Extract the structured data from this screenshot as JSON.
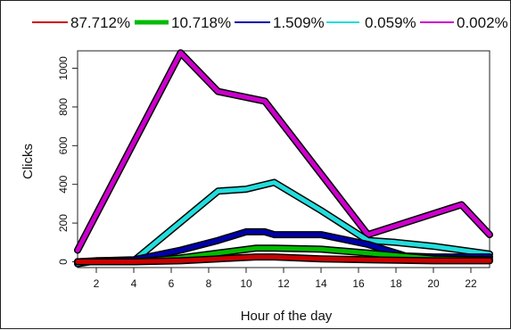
{
  "chart_data": {
    "type": "line",
    "xlabel": "Hour of the day",
    "ylabel": "Clicks",
    "x_ticks": [
      2,
      4,
      6,
      8,
      10,
      12,
      14,
      16,
      18,
      20,
      22
    ],
    "y_ticks": [
      0,
      200,
      400,
      600,
      800,
      1000
    ],
    "xlim": [
      1,
      23
    ],
    "ylim": [
      -30,
      1090
    ],
    "grid": false,
    "legend_position": "top",
    "series": [
      {
        "name": "87.712%",
        "color": "#cc0000",
        "x": [
          1,
          2,
          4,
          6.5,
          8.5,
          10.5,
          11.5,
          14,
          16.5,
          20,
          23
        ],
        "y": [
          0,
          0,
          0,
          5,
          15,
          25,
          25,
          15,
          10,
          5,
          5
        ]
      },
      {
        "name": "10.718%",
        "color": "#00bb00",
        "x": [
          1,
          2,
          4,
          6.5,
          8.5,
          10.5,
          11.5,
          14,
          16.5,
          20,
          23
        ],
        "y": [
          0,
          0,
          0,
          20,
          45,
          70,
          70,
          65,
          45,
          15,
          10
        ]
      },
      {
        "name": "1.509%",
        "color": "#0000aa",
        "x": [
          1,
          2,
          4,
          6.5,
          8.5,
          10,
          11,
          11.5,
          14,
          16.5,
          18.5,
          20,
          23
        ],
        "y": [
          0,
          5,
          10,
          60,
          110,
          155,
          155,
          140,
          140,
          90,
          30,
          25,
          25
        ]
      },
      {
        "name": "0.059%",
        "color": "#22dddd",
        "x": [
          1,
          2,
          4,
          8.5,
          10,
          11.5,
          14,
          16.5,
          18,
          20,
          23
        ],
        "y": [
          -10,
          5,
          5,
          365,
          375,
          410,
          265,
          110,
          100,
          80,
          40
        ]
      },
      {
        "name": "0.002%",
        "color": "#cc00cc",
        "x": [
          1,
          6.5,
          8.5,
          11,
          16.5,
          21.5,
          23
        ],
        "y": [
          60,
          1080,
          880,
          830,
          140,
          295,
          140
        ]
      }
    ]
  }
}
